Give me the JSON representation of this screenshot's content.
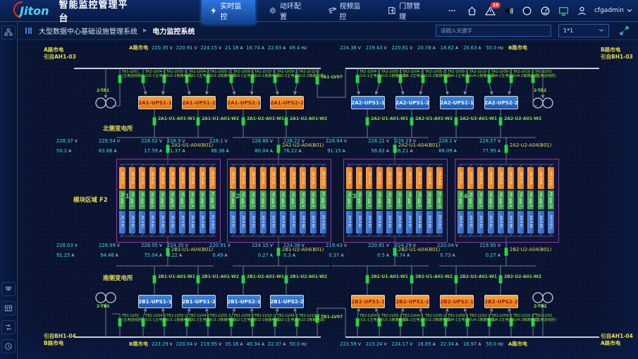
{
  "header": {
    "logo": "Jiton",
    "title": "智能监控管理平台",
    "tabs": [
      {
        "id": "realtime",
        "icon": "lightning-icon",
        "label": "实时监控",
        "active": true
      },
      {
        "id": "env-config",
        "icon": "gear-icon",
        "label": "动环配置",
        "active": false
      },
      {
        "id": "video",
        "icon": "camera-icon",
        "label": "视频监控",
        "active": false
      },
      {
        "id": "access",
        "icon": "door-icon",
        "label": "门禁管理",
        "active": false
      },
      {
        "id": "more",
        "icon": "ellipsis-icon",
        "label": "",
        "active": false
      }
    ],
    "icons": [
      "home-icon",
      "alarm-icon",
      "sound-icon",
      "record-icon",
      "dashboard-icon",
      "monitor-icon",
      "user-icon"
    ],
    "alarm_badge": "10",
    "user": "cfgadmin"
  },
  "subheader": {
    "breadcrumb_root": "大型数据中心基础设施管理系统",
    "separator": "▶",
    "breadcrumb_current": "电力监控系统",
    "search_placeholder": "请输入关键字",
    "layout_value": "1*1"
  },
  "sidebar": {
    "top_icons": [
      "org-tree-icon"
    ],
    "bottom_icons": [
      "dome-camera-icon",
      "datasheet-icon",
      "flow-icon",
      "history-icon"
    ]
  },
  "diagram": {
    "colors": {
      "ups_orange": "#f5921e",
      "ups_blue": "#2f74d0",
      "breaker_green": "#2bd24a",
      "label_yellow": "#e3de4e",
      "value_cyan": "#3fd9e8",
      "bank_purple": "#8a3da8"
    },
    "units": {
      "volt": "V",
      "amp": "A",
      "freq": "Hz"
    },
    "substations": {
      "north": "北侧变电所",
      "south": "南侧变电所"
    },
    "area_label": "模块区域 F2",
    "banks": [
      "M1",
      "M2",
      "M3",
      "M4"
    ],
    "bank_bar_patterns": {
      "top": "-P-A",
      "mid": "-机柜-",
      "bot": "-P-B"
    },
    "bank_columns": 10,
    "quadrants": {
      "top_left": {
        "side_label": [
          "A路市电",
          "引自AH1-03"
        ],
        "bus_label": "A路市电",
        "metrics": [
          [
            "220.35",
            "V"
          ],
          [
            "220.91",
            "V"
          ],
          [
            "224.15",
            "V"
          ],
          [
            "21.18",
            "A"
          ],
          [
            "16.74",
            "A"
          ],
          [
            "22.63",
            "A"
          ],
          [
            "49.4",
            "Hz"
          ]
        ],
        "transformer": "2-TA1",
        "tie": "TA1-LV07",
        "breakers": [
          [
            "TA1-LV01",
            "(主用进线柜)"
          ],
          [
            "TA1-LV04-1",
            "(U1-1主电源)"
          ],
          [
            "TA1-LV05-1",
            "(U1-1旁路电源)"
          ],
          [
            "TA1-LV04-2",
            "(U1-2主电源)"
          ],
          [
            "TA1-LV05-2",
            "(U1-2旁路电源)"
          ],
          [
            "TA1-LV09-1",
            "(U2-1主电源)"
          ],
          [
            "TA1-LV10-1",
            "(U2-1旁路电源)"
          ],
          [
            "TA1-LV09-2",
            "(U2-2主电源)"
          ],
          [
            "TA1-LV10-2",
            "(U2-2旁路电源)"
          ]
        ],
        "ups": [
          "2A1-UPS1-1",
          "2A1-UPS1-2",
          "2A1-UPS2-1",
          "2A1-UPS2-2"
        ],
        "w_breakers": [
          "2A1-U1-A01-W1",
          "2A1-U1-A01-W2",
          "2A1-U2-A01-W1",
          "2A1-U2-A01-W2"
        ],
        "collectors": [
          {
            "volts": [
              "228.37",
              "228.54",
              "228.02"
            ],
            "amps": [
              "50.2",
              "63.66",
              "17.59"
            ],
            "label": "2A1-U1-A04(B01)"
          },
          {
            "volts": [
              "228.9",
              "228.1",
              "228.88"
            ],
            "amps": [
              "71.37",
              "88.36",
              "80.04"
            ],
            "label": "2A1-U2-A04(B01)"
          }
        ]
      },
      "top_right": {
        "side_label": [
          "B路市电",
          "引自BH1-03"
        ],
        "bus_label": "B路市电",
        "metrics": [
          [
            "224.38",
            "V"
          ],
          [
            "219.43",
            "V"
          ],
          [
            "220.81",
            "V"
          ],
          [
            "20.78",
            "A"
          ],
          [
            "18.62",
            "A"
          ],
          [
            "20.63",
            "A"
          ],
          [
            "50.0",
            "Hz"
          ]
        ],
        "transformer": "2-TA2",
        "tie": "",
        "breakers": [
          [
            "TA2-LV04-1",
            "(U1-1主电源)"
          ],
          [
            "TA2-LV05-1",
            "(U1-1旁路电源)"
          ],
          [
            "TA2-LV04-2",
            "(U1-2主电源)"
          ],
          [
            "TA2-LV05-2",
            "(U1-2旁路电源)"
          ],
          [
            "TA2-LV09-1",
            "(U4-1主电源)"
          ],
          [
            "TA2-LV10-1",
            "(U4-1旁路电源)"
          ],
          [
            "TA2-LV09-2",
            "(U4-2主电源)"
          ],
          [
            "TA2-LV10-2",
            "(U4-2旁路电源)"
          ],
          [
            "TA2-LV01",
            "(主用进线柜)"
          ]
        ],
        "ups": [
          "2A2-UPS1-1",
          "2A2-UPS1-2",
          "2A2-UPS2-1",
          "2A2-UPS2-2"
        ],
        "w_breakers": [
          "2A2-U1-A01-W1",
          "2A2-U1-A01-W2",
          "2A2-U2-A01-W1",
          "2A2-U2-A01-W2"
        ],
        "collectors": [
          {
            "volts": [
              "228.22",
              "228.94",
              "228.21"
            ],
            "amps": [
              "76.22",
              "91.15",
              "56.62"
            ],
            "label": "2A2-U1-A04(B01)"
          },
          {
            "volts": [
              "228.19",
              "228.1",
              "228.57"
            ],
            "amps": [
              "56.21",
              "66.09",
              "77.95"
            ],
            "label": "2A2-U2-A04(B01)"
          }
        ]
      },
      "bottom_left": {
        "side_label": [
          "引自BH1-04",
          "B路市电"
        ],
        "bus_label": "B路市电",
        "metrics": [
          [
            "223.29",
            "V"
          ],
          [
            "220.04",
            "V"
          ],
          [
            "219.95",
            "V"
          ],
          [
            "35.16",
            "A"
          ],
          [
            "40.34",
            "A"
          ],
          [
            "22.37",
            "A"
          ],
          [
            "50.0",
            "Hz"
          ]
        ],
        "transformer": "2-TB1",
        "tie": "TB1-LV07",
        "breakers": [
          [
            "TB1-LV01",
            "(主用进线柜)"
          ],
          [
            "TB1-LV04-1",
            "(U1-1主电源)"
          ],
          [
            "TB1-LV05-1",
            "(U1-1旁路电源)"
          ],
          [
            "TB1-LV04-2",
            "(U1-2主电源)"
          ],
          [
            "TB1-LV05-2",
            "(U1-2旁路电源)"
          ],
          [
            "TB1-LV09-1",
            "(U2-1主电源)"
          ],
          [
            "TB1-LV10-1",
            "(U2-1旁路电源)"
          ],
          [
            "TB1-LV09-2",
            "(U2-2主电源)"
          ],
          [
            "TB1-LV10-2",
            "(U2-2旁路电源)"
          ]
        ],
        "ups": [
          "2B1-UPS1-1",
          "2B1-UPS1-2",
          "2B1-UPS2-1",
          "2B1-UPS2-2"
        ],
        "w_breakers": [
          "2B1-U1-A01-W1",
          "2B1-U1-A01-W2",
          "2B1-U2-A01-W1",
          "2B1-U2-A01-W2"
        ],
        "collectors": [
          {
            "volts": [
              "228.03",
              "228.99",
              "228.05"
            ],
            "amps": [
              "91.25",
              "94.48",
              "75.04"
            ],
            "label": "2B1-U1-A04(B01)"
          },
          {
            "volts": [
              "224.35",
              "220.91",
              "224.15"
            ],
            "amps": [
              "0.22",
              "0.49",
              "0.27"
            ],
            "label": "2B1-U2-A04(B01)"
          }
        ]
      },
      "bottom_right": {
        "side_label": [
          "引自AH1-04",
          "A路市电"
        ],
        "bus_label": "A路市电",
        "metrics": [
          [
            "223.59",
            "V"
          ],
          [
            "223.24",
            "V"
          ],
          [
            "224.17",
            "V"
          ],
          [
            "16.85",
            "A"
          ],
          [
            "22.34",
            "A"
          ],
          [
            "16.97",
            "A"
          ],
          [
            "50.0",
            "Hz"
          ]
        ],
        "transformer": "2-TB2",
        "tie": "",
        "breakers": [
          [
            "TB2-LV04-1",
            "(U1-1主电源)"
          ],
          [
            "TB2-LV05-1",
            "(U1-1旁路电源)"
          ],
          [
            "TB2-LV04-2",
            "(U1-2主电源)"
          ],
          [
            "TB2-LV05-2",
            "(U1-2旁路电源)"
          ],
          [
            "TB2-LV09-1",
            "(U4-1主电源)"
          ],
          [
            "TB2-LV10-1",
            "(U4-1旁路电源)"
          ],
          [
            "TB2-LV09-2",
            "(U4-2主电源)"
          ],
          [
            "TB2-LV10-2",
            "(U4-2旁路电源)"
          ],
          [
            "TB2-LV01",
            "(主用进线柜)"
          ]
        ],
        "ups": [
          "2B2-UPS1-1",
          "2B2-UPS1-2",
          "2B2-UPS2-1",
          "2B2-UPS2-2"
        ],
        "w_breakers": [
          "2B2-U1-A01-W1",
          "2B2-U1-A01-W2",
          "2B2-U2-A01-W1",
          "2B2-U2-A01-W2"
        ],
        "collectors": [
          {
            "volts": [
              "224.38",
              "219.43",
              "220.81"
            ],
            "amps": [
              "0.3",
              "0.37",
              "0.5"
            ],
            "label": "2B2-U1-A04(B01)"
          },
          {
            "volts": [
              "224.29",
              "220.04",
              "219.95"
            ],
            "amps": [
              "0.74",
              "0.73",
              "0.27"
            ],
            "label": "2B2-U2-A04(B01)"
          }
        ]
      }
    }
  }
}
